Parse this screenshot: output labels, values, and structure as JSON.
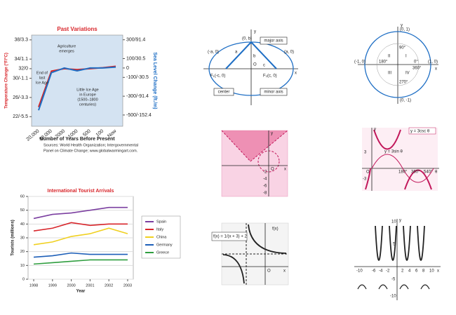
{
  "chart_data": [
    {
      "type": "line",
      "title": "Past Variations",
      "xlabel": "Number of Years Before Present",
      "ylabel": "Temperature Change (°F/°C)",
      "y2label": "Sea Level Change (ft./m)",
      "categories": [
        "20,000",
        "10,000",
        "2000",
        "1000",
        "500",
        "100",
        "Now"
      ],
      "series": [
        {
          "name": "Temperature",
          "color": "#e0201b",
          "values": [
            24,
            31.5,
            32,
            31.8,
            32,
            32.2,
            32.5
          ]
        },
        {
          "name": "Sea level",
          "color": "#1f6fc5",
          "axis": "y2",
          "values": [
            -450,
            -50,
            0,
            -30,
            0,
            0,
            10
          ]
        }
      ],
      "ylim": [
        20,
        39
      ],
      "yticks": [
        {
          "value": 38,
          "label": "38/3.3"
        },
        {
          "value": 34,
          "label": "34/1.1"
        },
        {
          "value": 32,
          "label": "32/0"
        },
        {
          "value": 30,
          "label": "30/-1.1"
        },
        {
          "value": 26,
          "label": "26/-3.3"
        },
        {
          "value": 22,
          "label": "22/-5.5"
        }
      ],
      "y2lim": [
        -620,
        350
      ],
      "y2ticks": [
        {
          "value": 300,
          "label": "300/91.4"
        },
        {
          "value": 100,
          "label": "100/30.5"
        },
        0,
        {
          "value": -100,
          "label": "-100/-30.5"
        },
        {
          "value": -300,
          "label": "-300/-91.4"
        },
        {
          "value": -500,
          "label": "-500/-152.4"
        }
      ],
      "annotations": [
        [
          "Agriculture",
          "emerges"
        ],
        [
          "End of",
          "last",
          "Ice Age"
        ],
        [
          "Little Ice Age",
          "in Europe",
          "(1500–1800",
          "centuries)"
        ]
      ],
      "sources": [
        "Sources: World Health Organization; Intergovernmental",
        "Panel on Climate Change; www.globalwarmingart.com."
      ]
    },
    {
      "type": "line",
      "title": "International Tourist Arrivals",
      "xlabel": "Year",
      "ylabel": "Tourists (millions)",
      "x": [
        1998,
        1999,
        2000,
        2001,
        2002,
        2003
      ],
      "xlim": [
        1997.7,
        2003.3
      ],
      "xticks": [
        1998,
        1999,
        2000,
        2001,
        2002,
        2003
      ],
      "ylim": [
        0,
        60
      ],
      "yticks": [
        0,
        10,
        20,
        30,
        40,
        50,
        60
      ],
      "series": [
        {
          "name": "Spain",
          "color": "#7b3fa0",
          "values": [
            44,
            47,
            48,
            50,
            52,
            52
          ]
        },
        {
          "name": "Italy",
          "color": "#d8262b",
          "values": [
            35,
            37,
            41,
            39,
            40,
            40
          ]
        },
        {
          "name": "China",
          "color": "#f0d020",
          "values": [
            25,
            27,
            31,
            33,
            37,
            33
          ]
        },
        {
          "name": "Germany",
          "color": "#1d5fb8",
          "values": [
            16,
            17,
            19,
            18,
            18,
            18
          ]
        },
        {
          "name": "Greece",
          "color": "#2f9e3f",
          "values": [
            11,
            12,
            13,
            14,
            14,
            14
          ]
        }
      ],
      "legend": "right"
    }
  ],
  "diagrams": {
    "ellipse": {
      "labels": [
        "major axis",
        "minor axis",
        "center",
        "(0, b)",
        "(-a, 0)",
        "(a, 0)",
        "F₁(-c, 0)",
        "F₂(c, 0)",
        "a",
        "b",
        "c",
        "O",
        "x",
        "y"
      ]
    },
    "unit_circle": {
      "labels": [
        "(0, 1)",
        "(-1, 0)",
        "(1, 0)",
        "(0, -1)",
        "90°",
        "180°",
        "270°",
        "360°",
        "0°",
        "II",
        "I",
        "III",
        "IV",
        "x",
        "y"
      ]
    },
    "inequality": {
      "labels": [
        "O",
        "x",
        "y",
        "-2",
        "-4",
        "-6",
        "-8"
      ]
    },
    "cosecant": {
      "labels": [
        "y = 3csc θ",
        "y = 3sin θ",
        "3",
        "-3",
        "O",
        "θ",
        "y",
        "180°",
        "360°",
        "540°"
      ]
    },
    "rational": {
      "labels": [
        "f(x) = 1/(x + 3) + 2",
        "f(x)",
        "O",
        "x"
      ]
    },
    "tangent": {
      "labels": [
        "10",
        "5",
        "-5",
        "-10",
        "2",
        "4",
        "6",
        "8",
        "10",
        "-10",
        "-6",
        "-4",
        "-2",
        "x",
        "y"
      ]
    }
  }
}
